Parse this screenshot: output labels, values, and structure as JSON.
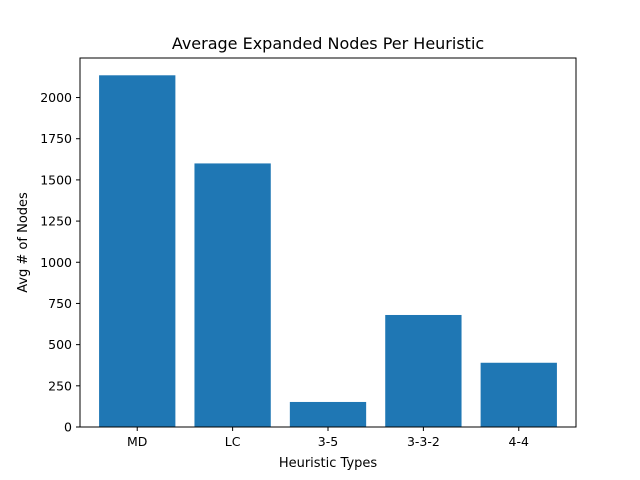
{
  "chart_data": {
    "type": "bar",
    "title": "Average Expanded Nodes Per Heuristic",
    "xlabel": "Heuristic Types",
    "ylabel": "Avg # of Nodes",
    "categories": [
      "MD",
      "LC",
      "3-5",
      "3-3-2",
      "4-4"
    ],
    "values": [
      2135,
      1600,
      152,
      680,
      390
    ],
    "ylim": [
      0,
      2240
    ],
    "yticks": [
      0,
      250,
      500,
      750,
      1000,
      1250,
      1500,
      1750,
      2000
    ],
    "bar_color": "#1f77b4",
    "grid": false,
    "legend": "none"
  }
}
